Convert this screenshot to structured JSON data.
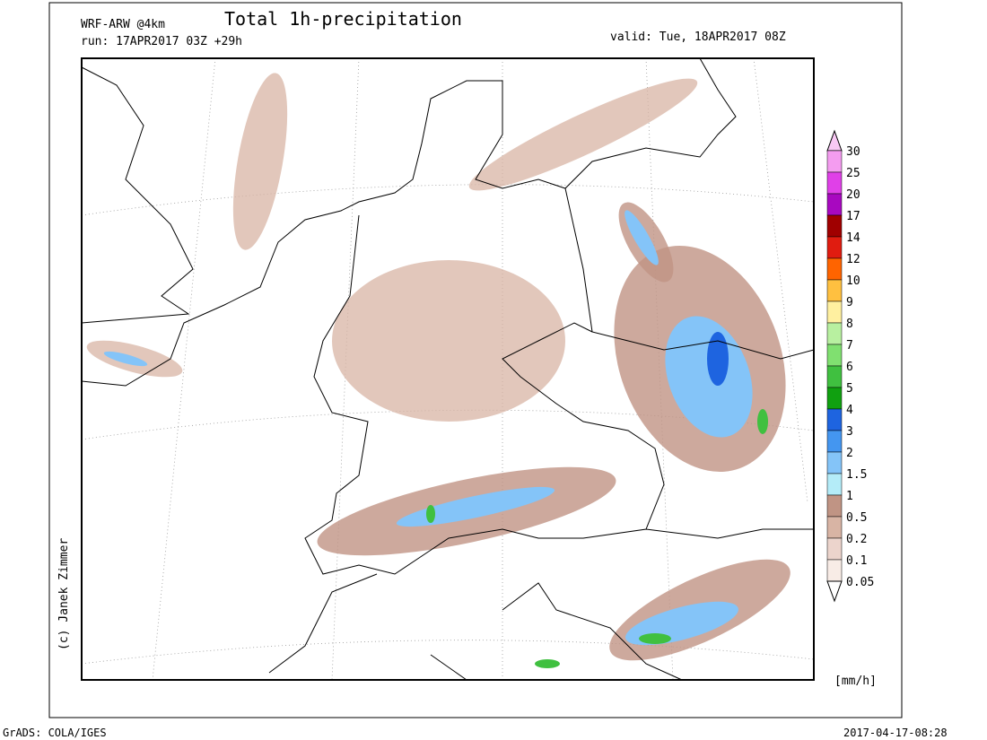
{
  "header": {
    "title": "Total 1h-precipitation",
    "model": "WRF-ARW @4km",
    "run": "run: 17APR2017 03Z +29h",
    "valid": "valid: Tue, 18APR2017 08Z"
  },
  "copyright": "(c) Janek Zimmer",
  "legend": {
    "unit": "[mm/h]",
    "levels": [
      "30",
      "25",
      "20",
      "17",
      "14",
      "12",
      "10",
      "9",
      "8",
      "7",
      "6",
      "5",
      "4",
      "3",
      "2",
      "1.5",
      "1",
      "0.5",
      "0.2",
      "0.1",
      "0.05"
    ],
    "colors": [
      "#f8c8f4",
      "#f49cf0",
      "#e040e8",
      "#a808c0",
      "#a00000",
      "#e01c10",
      "#ff6400",
      "#ffc040",
      "#fff0a0",
      "#b8f0a0",
      "#80e070",
      "#40c040",
      "#10a010",
      "#1e64e0",
      "#4496f0",
      "#84c4f8",
      "#b4ecf8",
      "#c09484",
      "#d8b4a4",
      "#ecd4cc",
      "#f8ece6",
      "#ffffff"
    ]
  },
  "footer": {
    "left": "GrADS: COLA/IGES",
    "right": "2017-04-17-08:28"
  }
}
